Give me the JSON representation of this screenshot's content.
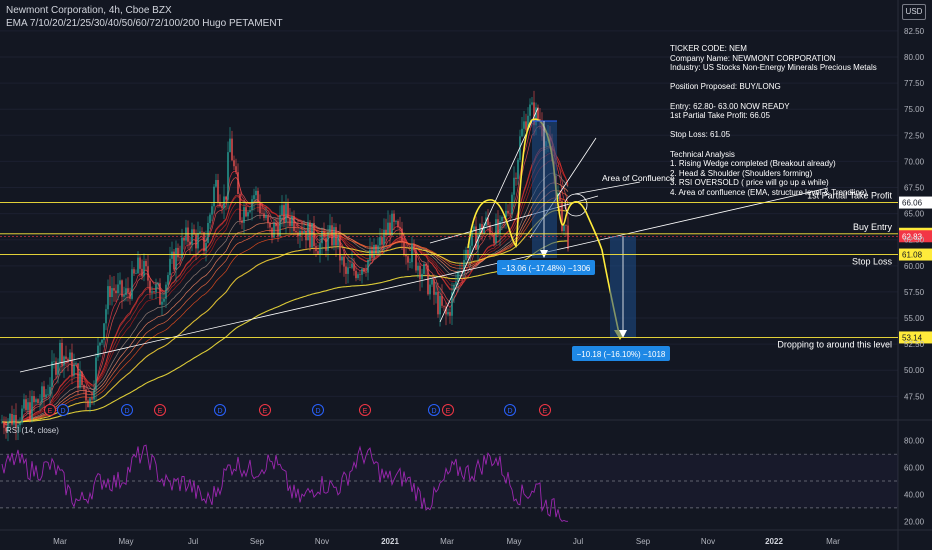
{
  "header": {
    "title": "Newmont Corporation, 4h, Cboe BZX",
    "indicator": "EMA 7/10/20/21/25/30/40/50/60/72/100/200 Hugo PETAMENT"
  },
  "currency": "USD",
  "price_axis": {
    "labels": [
      "82.50",
      "80.00",
      "77.50",
      "75.00",
      "72.50",
      "70.00",
      "67.50",
      "65.00",
      "62.50",
      "60.00",
      "57.50",
      "55.00",
      "52.50",
      "50.00",
      "47.50"
    ]
  },
  "rsi_axis": {
    "labels": [
      "80.00",
      "60.00",
      "40.00",
      "20.00"
    ]
  },
  "time_axis": {
    "labels": [
      "Mar",
      "May",
      "Jul",
      "Sep",
      "Nov",
      "2021",
      "Mar",
      "May",
      "Jul",
      "Sep",
      "Nov",
      "2022",
      "Mar"
    ]
  },
  "rsi_label": "RSI (14, close)",
  "notes": [
    "TICKER CODE: NEM",
    "Company Name: NEWMONT CORPORATION",
    "Industry: US Stocks Non-Energy Minerals Precious Metals",
    "",
    "Position Proposed: BUY/LONG",
    "",
    "Entry: 62.80- 63.00 NOW READY",
    "1st Partial Take Profit: 66.05",
    "",
    "Stop Loss: 61.05",
    "",
    "Technical Analysis",
    "1. Rising Wedge completed (Breakout already)",
    "2. Head & Shoulder (Shoulders forming)",
    "3. RSI OVERSOLD ( price will go up a while)",
    "4. Area of confluence (EMA, structure level & Trendline)"
  ],
  "levels": [
    {
      "price": 66.06,
      "tag": "66.06",
      "text": "1st Partial Take Profit",
      "tag_bg": "#ffffff",
      "tag_fg": "#131722"
    },
    {
      "price": 63.07,
      "tag": "63.07",
      "text": "Buy Entry",
      "tag_bg": "#ffeb3b",
      "tag_fg": "#131722"
    },
    {
      "price": 62.83,
      "tag": "62.83",
      "text": "",
      "tag_bg": "#f23645",
      "tag_fg": "#ffffff"
    },
    {
      "price": 61.08,
      "tag": "61.08",
      "text": "Stop Loss",
      "tag_bg": "#ffeb3b",
      "tag_fg": "#131722"
    },
    {
      "price": 53.14,
      "tag": "53.14",
      "text": "Dropping to around this level",
      "tag_bg": "#ffeb3b",
      "tag_fg": "#131722"
    }
  ],
  "annotations": {
    "confluence": "Area of Confluence",
    "measure1": "−13.06 (−17.48%) −1306",
    "measure2": "−10.18 (−16.10%) −1018"
  },
  "events": [
    "E",
    "D",
    "D",
    "E",
    "D",
    "E",
    "D",
    "E",
    "D",
    "E",
    "D",
    "E",
    "D",
    "E",
    "D"
  ],
  "colors": {
    "background": "#131722",
    "level_line": "#ffeb3b",
    "measure_box": "#1e4f8c",
    "measure_label": "#2962ff",
    "rsi_line": "#9c27b0",
    "ema_fast": "#f23645",
    "ema_slow": "#ffeb3b",
    "up_candle": "#26a69a",
    "down_candle": "#ef5350"
  },
  "chart_data": {
    "type": "line",
    "price_range": [
      46,
      84.5
    ],
    "rsi_range": [
      15,
      88
    ],
    "x_months": [
      "Mar",
      "May",
      "Jul",
      "Sep",
      "Nov",
      "2021",
      "Mar",
      "May",
      "Jul"
    ],
    "close_approx": [
      45,
      48,
      53,
      58,
      62,
      66,
      69,
      70,
      67,
      63,
      60,
      62,
      63,
      60,
      58,
      56,
      60,
      63,
      70,
      74,
      68,
      63,
      62.8
    ],
    "rsi_approx": [
      50,
      62,
      55,
      48,
      65,
      40,
      58,
      52,
      45,
      60,
      55,
      50,
      42,
      62,
      70,
      55,
      48,
      40,
      35,
      28
    ]
  }
}
